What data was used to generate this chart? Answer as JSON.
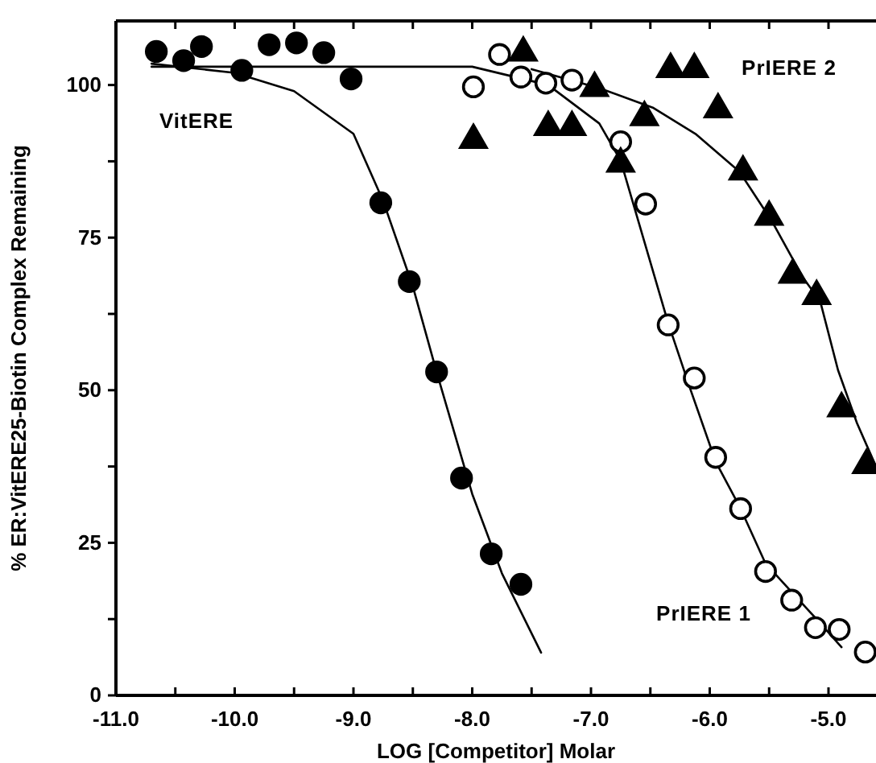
{
  "chart_data": {
    "type": "scatter",
    "xlabel": "LOG [Competitor] Molar",
    "ylabel": "% ER:VitERE25-Biotin Complex Remaining",
    "xlim": [
      -11,
      -4.6
    ],
    "ylim": [
      0,
      110.5
    ],
    "xticks": [
      {
        "value": -11,
        "label": "-11.0"
      },
      {
        "value": -10.5,
        "label": null
      },
      {
        "value": -10,
        "label": "-10.0"
      },
      {
        "value": -9.5,
        "label": null
      },
      {
        "value": -9,
        "label": "-9.0"
      },
      {
        "value": -8.5,
        "label": null
      },
      {
        "value": -8,
        "label": "-8.0"
      },
      {
        "value": -7.5,
        "label": null
      },
      {
        "value": -7,
        "label": "-7.0"
      },
      {
        "value": -6.5,
        "label": null
      },
      {
        "value": -6,
        "label": "-6.0"
      },
      {
        "value": -5.5,
        "label": null
      },
      {
        "value": -5,
        "label": "-5.0"
      }
    ],
    "yticks": [
      0,
      {
        "value": 12.5,
        "label": null
      },
      25,
      {
        "value": 37.5,
        "label": null
      },
      50,
      {
        "value": 62.5,
        "label": null
      },
      75,
      {
        "value": 87.5,
        "label": null
      },
      100
    ],
    "grid": false,
    "legend": false,
    "series": [
      {
        "type": "line",
        "marker": "none",
        "color": "#000000",
        "x": [
          -10.7,
          -10,
          -9.5,
          -9,
          -8.75,
          -8.5,
          -8.3,
          -8,
          -7.75,
          -7.42
        ],
        "values": [
          103.5,
          102,
          99,
          92,
          81,
          67,
          53,
          33,
          20,
          7
        ]
      },
      {
        "type": "line",
        "marker": "none",
        "color": "#000000",
        "x": [
          -10.7,
          -8,
          -7.36,
          -6.93,
          -6.75,
          -6.35,
          -6.16,
          -5.95,
          -5.74,
          -5.53,
          -5.12,
          -4.89
        ],
        "values": [
          103,
          103,
          100,
          93.7,
          87.6,
          61,
          50,
          38.3,
          30.6,
          21.6,
          12.9,
          7.9
        ]
      },
      {
        "type": "line",
        "marker": "none",
        "color": "#000000",
        "x": [
          -7.5,
          -6.93,
          -6.48,
          -6.12,
          -5.75,
          -5.48,
          -5.21,
          -5.07,
          -4.92,
          -4.76,
          -4.6
        ],
        "values": [
          102.6,
          99.5,
          96.3,
          92,
          85.8,
          77.8,
          68.3,
          64.6,
          53.3,
          44.6,
          37.5
        ]
      },
      {
        "name": "VitERE",
        "marker": "circle",
        "color": "#000000",
        "x": [
          -10.66,
          -10.43,
          -10.28,
          -9.94,
          -9.71,
          -9.48,
          -9.25,
          -9.02,
          -8.77,
          -8.53,
          -8.3,
          -8.09,
          -7.84,
          -7.59
        ],
        "values": [
          105.5,
          104,
          106.3,
          102.4,
          106.6,
          106.9,
          105.3,
          101,
          80.7,
          67.8,
          53,
          35.6,
          23.2,
          18.2
        ]
      },
      {
        "name": "PrIERE 1",
        "marker": "circle",
        "color": "#ffffff",
        "x": [
          -7.99,
          -7.77,
          -7.59,
          -7.38,
          -7.16,
          -6.75,
          -6.54,
          -6.35,
          -6.13,
          -5.95,
          -5.74,
          -5.53,
          -5.31,
          -5.11,
          -4.91,
          -4.69
        ],
        "values": [
          99.7,
          105,
          101.3,
          100.3,
          100.8,
          90.7,
          80.5,
          60.7,
          52,
          39,
          30.6,
          20.3,
          15.6,
          11.1,
          10.8,
          7.1
        ]
      },
      {
        "name": "PrIERE 2",
        "marker": "triangle",
        "color": "#000000",
        "x": [
          -7.99,
          -7.57,
          -7.36,
          -7.16,
          -6.97,
          -6.75,
          -6.55,
          -6.33,
          -6.13,
          -5.93,
          -5.72,
          -5.5,
          -5.3,
          -5.1,
          -4.89,
          -4.68
        ],
        "values": [
          91,
          105.3,
          93.1,
          93.1,
          99.5,
          87.1,
          94.7,
          102.6,
          102.6,
          96,
          85.8,
          78.4,
          68.9,
          65.4,
          47,
          37.7
        ]
      }
    ]
  }
}
